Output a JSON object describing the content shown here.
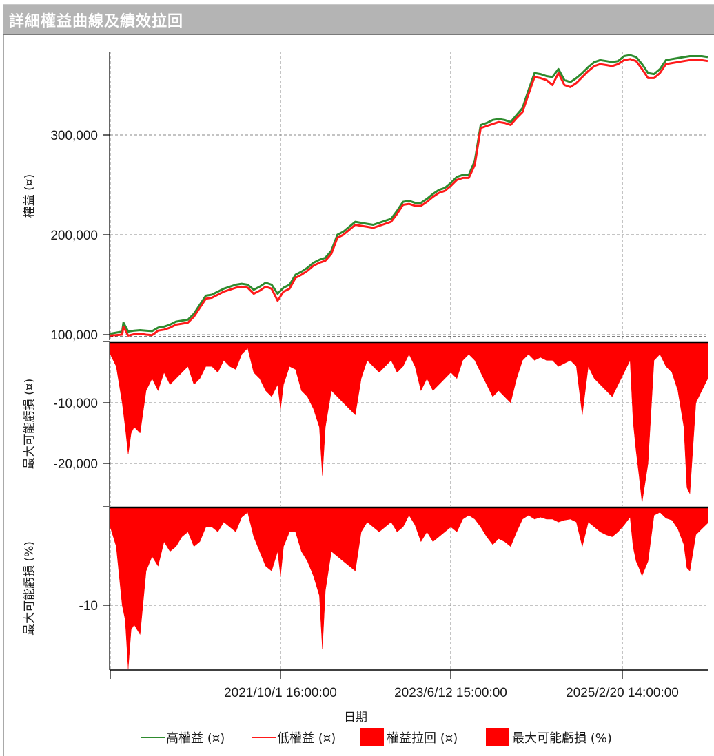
{
  "window": {
    "title": "詳細權益曲線及績效拉回"
  },
  "colors": {
    "high_equity": "#2e8b2e",
    "low_equity": "#ff1a1a",
    "drawdown_fill": "#ff0000",
    "grid": "#8a8a8a",
    "axis": "#000000",
    "titlebar_bg": "#b4b4b4"
  },
  "x_axis": {
    "title": "日期",
    "tick_labels": [
      "2021/10/1 16:00:00",
      "2023/6/12 15:00:00",
      "2025/2/20 14:00:00"
    ]
  },
  "legend": [
    {
      "label": "高權益 (¤)",
      "type": "line",
      "color": "#2e8b2e"
    },
    {
      "label": "低權益 (¤)",
      "type": "line",
      "color": "#ff1a1a"
    },
    {
      "label": "權益拉回 (¤)",
      "type": "box",
      "color": "#ff0000"
    },
    {
      "label": "最大可能虧損 (%)",
      "type": "box",
      "color": "#ff0000"
    }
  ],
  "chart_data": [
    {
      "type": "line",
      "title": "詳細權益曲線及績效拉回",
      "panel": "equity",
      "ylabel": "權益 (¤)",
      "xlabel": "日期",
      "y_tick_labels": [
        "100,000",
        "200,000",
        "300,000"
      ],
      "y_ticks": [
        100000,
        200000,
        300000
      ],
      "ylim": [
        95000,
        389000
      ],
      "x_tick_labels": [
        "2021/10/1 16:00:00",
        "2023/6/12 15:00:00",
        "2025/2/20 14:00:00"
      ],
      "grid": true,
      "x": [
        0,
        0.02,
        0.022,
        0.03,
        0.04,
        0.05,
        0.06,
        0.07,
        0.08,
        0.09,
        0.1,
        0.11,
        0.12,
        0.13,
        0.14,
        0.15,
        0.16,
        0.17,
        0.18,
        0.19,
        0.2,
        0.21,
        0.22,
        0.23,
        0.24,
        0.25,
        0.26,
        0.27,
        0.28,
        0.29,
        0.3,
        0.31,
        0.32,
        0.33,
        0.34,
        0.35,
        0.36,
        0.37,
        0.38,
        0.39,
        0.4,
        0.41,
        0.42,
        0.43,
        0.44,
        0.45,
        0.46,
        0.47,
        0.48,
        0.49,
        0.5,
        0.51,
        0.52,
        0.53,
        0.54,
        0.55,
        0.56,
        0.57,
        0.58,
        0.59,
        0.6,
        0.61,
        0.62,
        0.63,
        0.64,
        0.65,
        0.66,
        0.67,
        0.68,
        0.69,
        0.7,
        0.71,
        0.72,
        0.73,
        0.74,
        0.75,
        0.76,
        0.77,
        0.78,
        0.79,
        0.8,
        0.81,
        0.82,
        0.83,
        0.84,
        0.85,
        0.86,
        0.87,
        0.88,
        0.89,
        0.9,
        0.91,
        0.92,
        0.93,
        0.94,
        0.95,
        0.96,
        0.97,
        0.98,
        0.99,
        1.0
      ],
      "series": [
        {
          "name": "高權益 (¤)",
          "color": "#2e8b2e",
          "values": [
            101000,
            103000,
            112000,
            103000,
            104000,
            104500,
            104000,
            103500,
            107000,
            108000,
            110000,
            113000,
            114000,
            115000,
            121000,
            130000,
            139000,
            140000,
            143000,
            146000,
            148000,
            150000,
            151000,
            150000,
            145000,
            148000,
            152000,
            150000,
            141000,
            147000,
            150000,
            160000,
            163000,
            167000,
            172000,
            175000,
            177000,
            184000,
            200000,
            203000,
            208000,
            213000,
            212000,
            211000,
            210000,
            212000,
            214000,
            216000,
            224000,
            233000,
            234000,
            232000,
            232000,
            236000,
            241000,
            245000,
            247000,
            252000,
            258000,
            260000,
            260000,
            274000,
            310000,
            312000,
            315000,
            316000,
            315000,
            313000,
            320000,
            327000,
            345000,
            362000,
            361000,
            359000,
            358000,
            366000,
            355000,
            353000,
            357000,
            362000,
            368000,
            373000,
            375000,
            374000,
            373000,
            374000,
            379000,
            380000,
            378000,
            371000,
            362000,
            361000,
            366000,
            375000,
            376000,
            377000,
            378000,
            379000,
            379000,
            379000,
            378000
          ]
        },
        {
          "name": "低權益 (¤)",
          "color": "#ff1a1a",
          "values": [
            99000,
            100000,
            108000,
            99000,
            100500,
            101000,
            100000,
            99500,
            104000,
            105000,
            107000,
            110000,
            111000,
            112000,
            118000,
            127000,
            136000,
            137000,
            140000,
            143000,
            145000,
            147000,
            148000,
            147000,
            141000,
            144000,
            148000,
            146000,
            134000,
            143000,
            146000,
            157000,
            160000,
            164000,
            169000,
            172000,
            174000,
            181000,
            197000,
            200000,
            205000,
            210000,
            209000,
            208000,
            207000,
            209000,
            211000,
            213000,
            221000,
            230000,
            231000,
            229000,
            229000,
            233000,
            238000,
            242000,
            244000,
            249000,
            255000,
            257000,
            257000,
            270000,
            307000,
            309000,
            311000,
            313000,
            312000,
            310000,
            317000,
            323000,
            341000,
            358000,
            357000,
            355000,
            350000,
            362000,
            350000,
            348000,
            352000,
            358000,
            364000,
            369000,
            371000,
            370000,
            369000,
            371000,
            375000,
            376000,
            374000,
            366000,
            357000,
            357000,
            362000,
            371000,
            372000,
            373000,
            374000,
            375000,
            375000,
            375000,
            374000
          ]
        }
      ]
    },
    {
      "type": "area",
      "panel": "drawdown_amount",
      "ylabel": "最大可能虧損 (¤)",
      "legend_label": "權益拉回 (¤)",
      "y_tick_labels": [
        "-10,000",
        "-20,000"
      ],
      "y_ticks": [
        -10000,
        -20000
      ],
      "ylim": [
        -27000,
        0
      ],
      "grid": true,
      "x": [
        0,
        0.01,
        0.02,
        0.025,
        0.03,
        0.035,
        0.04,
        0.05,
        0.06,
        0.07,
        0.08,
        0.09,
        0.1,
        0.11,
        0.12,
        0.13,
        0.14,
        0.15,
        0.16,
        0.17,
        0.18,
        0.19,
        0.2,
        0.21,
        0.22,
        0.23,
        0.24,
        0.25,
        0.26,
        0.27,
        0.28,
        0.285,
        0.29,
        0.3,
        0.31,
        0.32,
        0.33,
        0.34,
        0.35,
        0.355,
        0.36,
        0.37,
        0.38,
        0.39,
        0.4,
        0.41,
        0.42,
        0.43,
        0.44,
        0.45,
        0.46,
        0.47,
        0.48,
        0.49,
        0.5,
        0.51,
        0.52,
        0.53,
        0.54,
        0.55,
        0.56,
        0.57,
        0.58,
        0.59,
        0.6,
        0.61,
        0.62,
        0.63,
        0.64,
        0.65,
        0.66,
        0.67,
        0.68,
        0.69,
        0.7,
        0.71,
        0.72,
        0.73,
        0.74,
        0.75,
        0.76,
        0.77,
        0.78,
        0.79,
        0.8,
        0.81,
        0.82,
        0.83,
        0.84,
        0.85,
        0.86,
        0.87,
        0.875,
        0.88,
        0.885,
        0.89,
        0.9,
        0.91,
        0.92,
        0.93,
        0.94,
        0.95,
        0.96,
        0.965,
        0.97,
        0.98,
        0.99,
        1.0
      ],
      "values": [
        -2000,
        -4000,
        -10000,
        -14000,
        -18500,
        -15000,
        -14000,
        -15000,
        -8000,
        -6000,
        -8000,
        -5000,
        -7000,
        -6000,
        -5000,
        -4000,
        -7000,
        -6000,
        -4000,
        -4000,
        -5000,
        -3000,
        -4000,
        -4500,
        -2000,
        -1000,
        -5000,
        -6000,
        -8000,
        -9000,
        -7000,
        -11000,
        -7000,
        -4000,
        -4500,
        -8000,
        -9000,
        -11000,
        -14000,
        -22000,
        -14000,
        -8000,
        -9000,
        -10000,
        -11000,
        -12000,
        -6000,
        -3000,
        -4000,
        -5000,
        -4000,
        -3000,
        -5000,
        -4000,
        -2000,
        -4000,
        -8000,
        -6000,
        -8000,
        -7000,
        -6000,
        -5000,
        -6000,
        -3000,
        -2000,
        -3000,
        -5000,
        -7000,
        -9000,
        -8000,
        -9000,
        -10000,
        -6000,
        -3000,
        -2000,
        -3000,
        -2500,
        -3000,
        -3000,
        -4000,
        -3500,
        -3000,
        -4000,
        -12000,
        -4000,
        -6000,
        -7000,
        -8000,
        -9000,
        -7000,
        -5000,
        -3000,
        -13000,
        -18000,
        -22000,
        -26500,
        -20000,
        -3000,
        -2000,
        -4000,
        -5000,
        -8000,
        -14000,
        -24000,
        -25000,
        -10000,
        -8000,
        -6000
      ]
    },
    {
      "type": "area",
      "panel": "drawdown_percent",
      "ylabel": "最大可能虧損 (%)",
      "legend_label": "最大可能虧損 (%)",
      "y_tick_labels": [
        "-10"
      ],
      "y_ticks": [
        -10
      ],
      "ylim": [
        -16.7,
        0
      ],
      "grid": true,
      "x": [
        0,
        0.01,
        0.02,
        0.025,
        0.03,
        0.035,
        0.04,
        0.05,
        0.06,
        0.07,
        0.08,
        0.09,
        0.1,
        0.11,
        0.12,
        0.13,
        0.14,
        0.15,
        0.16,
        0.17,
        0.18,
        0.19,
        0.2,
        0.21,
        0.22,
        0.23,
        0.24,
        0.25,
        0.26,
        0.27,
        0.28,
        0.285,
        0.29,
        0.3,
        0.31,
        0.32,
        0.33,
        0.34,
        0.35,
        0.355,
        0.36,
        0.37,
        0.38,
        0.39,
        0.4,
        0.41,
        0.42,
        0.43,
        0.44,
        0.45,
        0.46,
        0.47,
        0.48,
        0.49,
        0.5,
        0.51,
        0.52,
        0.53,
        0.54,
        0.55,
        0.56,
        0.57,
        0.58,
        0.59,
        0.6,
        0.61,
        0.62,
        0.63,
        0.64,
        0.65,
        0.66,
        0.67,
        0.68,
        0.69,
        0.7,
        0.71,
        0.72,
        0.73,
        0.74,
        0.75,
        0.76,
        0.77,
        0.78,
        0.79,
        0.8,
        0.81,
        0.82,
        0.83,
        0.84,
        0.85,
        0.86,
        0.87,
        0.875,
        0.88,
        0.885,
        0.89,
        0.9,
        0.91,
        0.92,
        0.93,
        0.94,
        0.95,
        0.96,
        0.965,
        0.97,
        0.98,
        0.99,
        1.0
      ],
      "values": [
        -2000,
        -4000,
        -10000,
        -11500,
        -16500,
        -12500,
        -12000,
        -13000,
        -6500,
        -5000,
        -6000,
        -3500,
        -4500,
        -4000,
        -3000,
        -2500,
        -4000,
        -3500,
        -2000,
        -2000,
        -2500,
        -1500,
        -2000,
        -2500,
        -1000,
        -500,
        -3000,
        -4500,
        -6000,
        -6500,
        -4500,
        -7000,
        -4000,
        -2500,
        -2500,
        -4500,
        -5500,
        -7000,
        -9000,
        -14500,
        -8500,
        -4500,
        -5000,
        -5500,
        -6000,
        -6500,
        -2500,
        -1500,
        -2000,
        -2500,
        -2000,
        -1500,
        -2500,
        -2000,
        -800,
        -1800,
        -3500,
        -2500,
        -3500,
        -3000,
        -2500,
        -2000,
        -2500,
        -1200,
        -800,
        -1200,
        -2000,
        -3000,
        -3800,
        -3200,
        -3500,
        -4000,
        -2500,
        -1200,
        -800,
        -1200,
        -1000,
        -1200,
        -1200,
        -1500,
        -1300,
        -1200,
        -1500,
        -4000,
        -1500,
        -2000,
        -2500,
        -2800,
        -3000,
        -2500,
        -1800,
        -1000,
        -4000,
        -5500,
        -6200,
        -7000,
        -5500,
        -800,
        -500,
        -1100,
        -1300,
        -2200,
        -3800,
        -6200,
        -6500,
        -2800,
        -2200,
        -1600
      ]
    }
  ]
}
